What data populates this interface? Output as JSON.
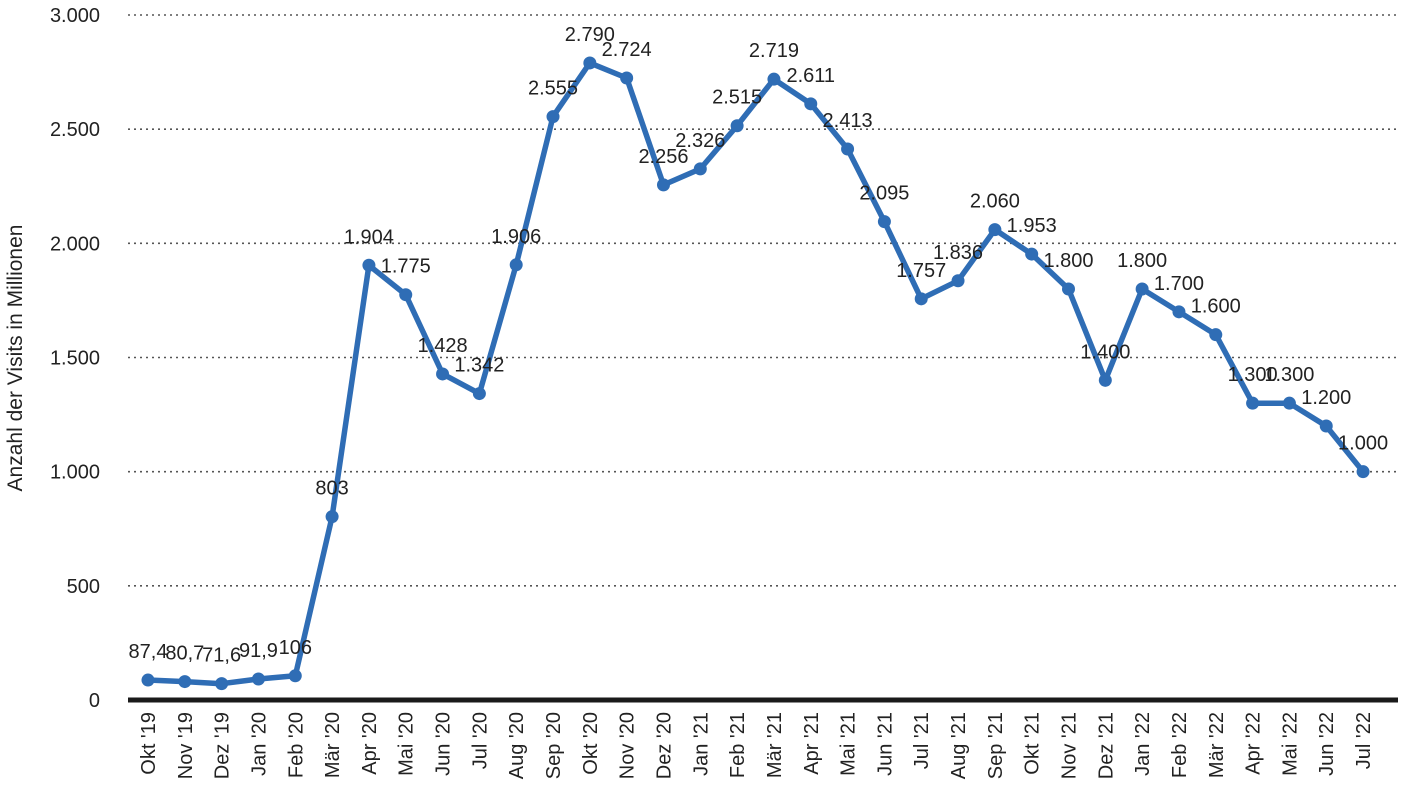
{
  "chart_data": {
    "type": "line",
    "ylabel": "Anzahl der Visits in Millionen",
    "xlabel": "",
    "ylim": [
      0,
      3000
    ],
    "yticks": [
      0,
      500,
      1000,
      1500,
      2000,
      2500,
      3000
    ],
    "ytick_labels": [
      "0",
      "500",
      "1.000",
      "1.500",
      "2.000",
      "2.500",
      "3.000"
    ],
    "grid": "horizontal dotted",
    "line_color": "#2F6DB5",
    "categories": [
      "Okt '19",
      "Nov '19",
      "Dez '19",
      "Jan '20",
      "Feb '20",
      "Mär '20",
      "Apr '20",
      "Mai '20",
      "Jun '20",
      "Jul '20",
      "Aug '20",
      "Sep '20",
      "Okt '20",
      "Nov '20",
      "Dez '20",
      "Jan '21",
      "Feb '21",
      "Mär '21",
      "Apr '21",
      "Mai '21",
      "Jun '21",
      "Jul '21",
      "Aug '21",
      "Sep '21",
      "Okt '21",
      "Nov '21",
      "Dez '21",
      "Jan '22",
      "Feb '22",
      "Mär '22",
      "Apr '22",
      "Mai '22",
      "Jun '22",
      "Jul '22"
    ],
    "values": [
      87.4,
      80.7,
      71.6,
      91.9,
      106,
      803,
      1904,
      1775,
      1428,
      1342,
      1906,
      2555,
      2790,
      2724,
      2256,
      2326,
      2515,
      2719,
      2611,
      2413,
      2095,
      1757,
      1836,
      2060,
      1953,
      1800,
      1400,
      1800,
      1700,
      1600,
      1300,
      1300,
      1200,
      1000
    ],
    "data_labels": [
      "87,4",
      "80,7",
      "71,6",
      "91,9",
      "106",
      "803",
      "1.904",
      "1.775",
      "1.428",
      "1.342",
      "1.906",
      "2.555",
      "2.790",
      "2.724",
      "2.256",
      "2.326",
      "2.515",
      "2.719",
      "2.611",
      "2.413",
      "2.095",
      "1.757",
      "1.836",
      "2.060",
      "1.953",
      "1.800",
      "1.400",
      "1.800",
      "1.700",
      "1.600",
      "1.300",
      "1.300",
      "1.200",
      "1.000"
    ]
  }
}
